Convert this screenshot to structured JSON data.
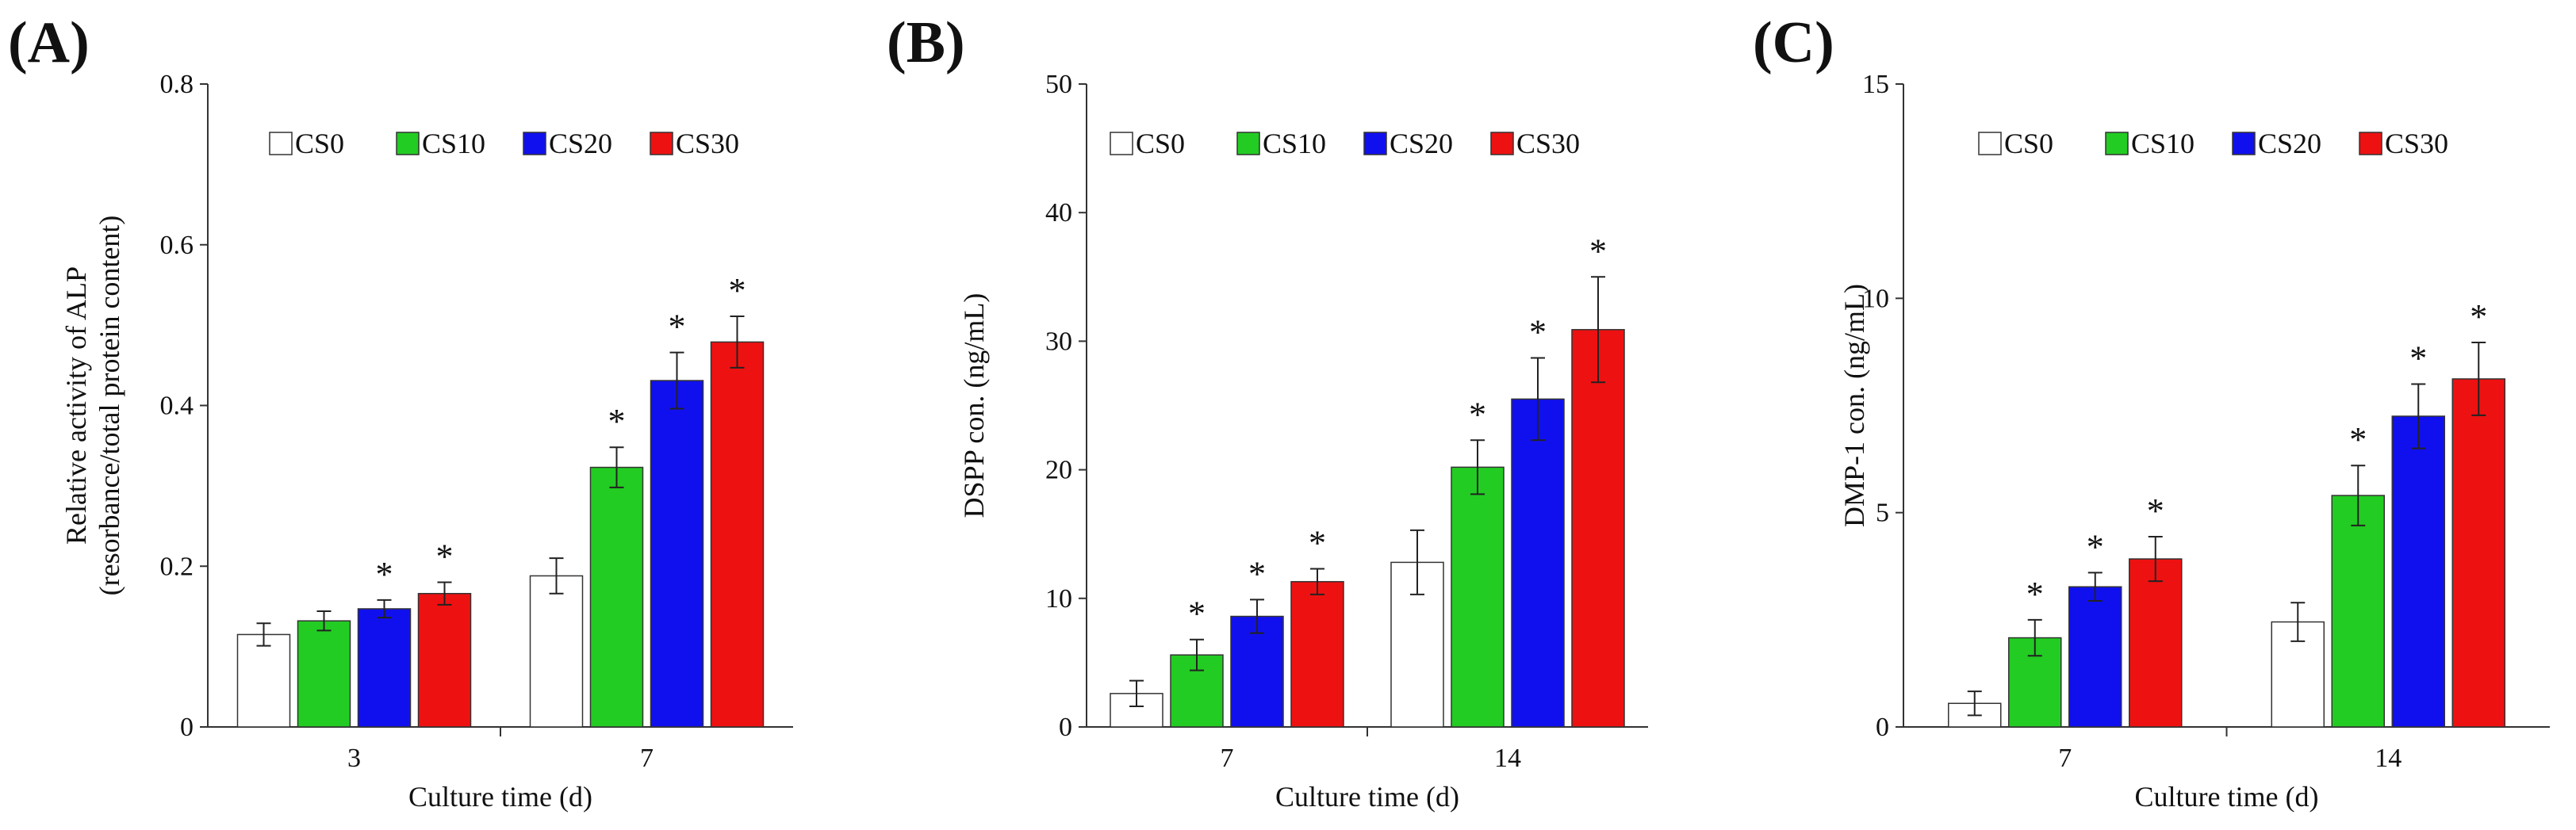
{
  "chart_data": [
    {
      "type": "bar",
      "panel_label": "(A)",
      "ylabel_lines": [
        "Relative activity of ALP",
        "(resorbance/total protein content)"
      ],
      "xlabel": "Culture time (d)",
      "categories": [
        "3",
        "7"
      ],
      "ylim": [
        0,
        0.8
      ],
      "yticks": [
        "0",
        "0.2",
        "0.4",
        "0.6",
        "0.8"
      ],
      "yticks_values": [
        0,
        0.2,
        0.4,
        0.6,
        0.8
      ],
      "series": [
        {
          "name": "CS0",
          "color": "#ffffff",
          "values": [
            0.115,
            0.188
          ],
          "errors": [
            0.014,
            0.022
          ],
          "significant": [
            false,
            false
          ]
        },
        {
          "name": "CS10",
          "color": "#22cc22",
          "values": [
            0.132,
            0.323
          ],
          "errors": [
            0.012,
            0.025
          ],
          "significant": [
            false,
            true
          ]
        },
        {
          "name": "CS20",
          "color": "#1010ee",
          "values": [
            0.147,
            0.431
          ],
          "errors": [
            0.011,
            0.035
          ],
          "significant": [
            true,
            true
          ]
        },
        {
          "name": "CS30",
          "color": "#ee1111",
          "values": [
            0.166,
            0.479
          ],
          "errors": [
            0.014,
            0.032
          ],
          "significant": [
            true,
            true
          ]
        }
      ],
      "significance_mark": "*",
      "legend_position": "top"
    },
    {
      "type": "bar",
      "panel_label": "(B)",
      "ylabel_lines": [
        "DSPP con. (ng/mL)"
      ],
      "xlabel": "Culture time (d)",
      "categories": [
        "7",
        "14"
      ],
      "ylim": [
        0,
        50
      ],
      "yticks": [
        "0",
        "10",
        "20",
        "30",
        "40",
        "50"
      ],
      "yticks_values": [
        0,
        10,
        20,
        30,
        40,
        50
      ],
      "series": [
        {
          "name": "CS0",
          "color": "#ffffff",
          "values": [
            2.6,
            12.8
          ],
          "errors": [
            1.0,
            2.5
          ],
          "significant": [
            false,
            false
          ]
        },
        {
          "name": "CS10",
          "color": "#22cc22",
          "values": [
            5.6,
            20.2
          ],
          "errors": [
            1.2,
            2.1
          ],
          "significant": [
            true,
            true
          ]
        },
        {
          "name": "CS20",
          "color": "#1010ee",
          "values": [
            8.6,
            25.5
          ],
          "errors": [
            1.3,
            3.2
          ],
          "significant": [
            true,
            true
          ]
        },
        {
          "name": "CS30",
          "color": "#ee1111",
          "values": [
            11.3,
            30.9
          ],
          "errors": [
            1.0,
            4.1
          ],
          "significant": [
            true,
            true
          ]
        }
      ],
      "significance_mark": "*",
      "legend_position": "top"
    },
    {
      "type": "bar",
      "panel_label": "(C)",
      "ylabel_lines": [
        "DMP-1 con. (ng/mL)"
      ],
      "xlabel": "Culture time (d)",
      "categories": [
        "7",
        "14"
      ],
      "ylim": [
        0,
        15
      ],
      "yticks": [
        "0",
        "5",
        "10",
        "15"
      ],
      "yticks_values": [
        0,
        5,
        10,
        15
      ],
      "series": [
        {
          "name": "CS0",
          "color": "#ffffff",
          "values": [
            0.55,
            2.45
          ],
          "errors": [
            0.28,
            0.45
          ],
          "significant": [
            false,
            false
          ]
        },
        {
          "name": "CS10",
          "color": "#22cc22",
          "values": [
            2.08,
            5.4
          ],
          "errors": [
            0.42,
            0.7
          ],
          "significant": [
            true,
            true
          ]
        },
        {
          "name": "CS20",
          "color": "#1010ee",
          "values": [
            3.27,
            7.25
          ],
          "errors": [
            0.33,
            0.75
          ],
          "significant": [
            true,
            true
          ]
        },
        {
          "name": "CS30",
          "color": "#ee1111",
          "values": [
            3.92,
            8.12
          ],
          "errors": [
            0.52,
            0.85
          ],
          "significant": [
            true,
            true
          ]
        }
      ],
      "significance_mark": "*",
      "legend_position": "top"
    }
  ]
}
